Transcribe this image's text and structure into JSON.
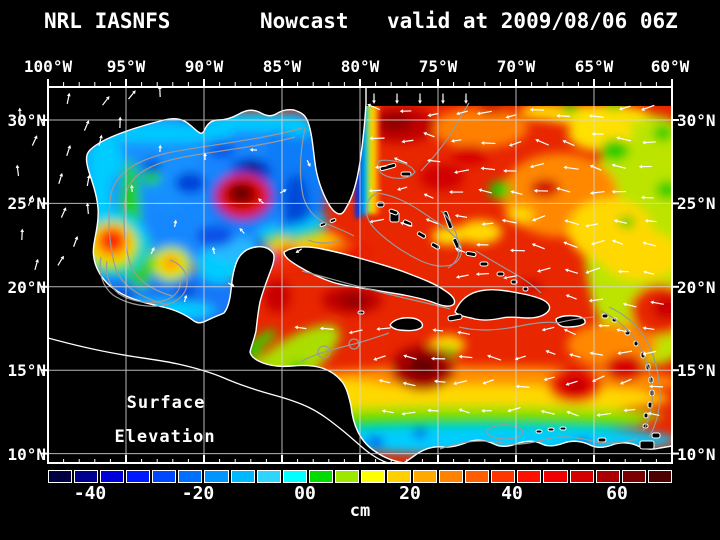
{
  "title": {
    "model": "NRL IASNFS",
    "product": "Nowcast",
    "valid": "valid at 2009/08/06 06Z"
  },
  "map": {
    "annotation": {
      "line1": "Surface",
      "line2": "Elevation"
    },
    "x_axis": {
      "labels": [
        "100°W",
        "95°W",
        "90°W",
        "85°W",
        "80°W",
        "75°W",
        "70°W",
        "65°W",
        "60°W"
      ]
    },
    "y_axis_left": {
      "labels": [
        "30°N",
        "25°N",
        "20°N",
        "15°N",
        "10°N"
      ]
    },
    "y_axis_right": {
      "labels": [
        "30°N",
        "25°N",
        "20°N",
        "15°N",
        "10°N"
      ]
    }
  },
  "colorbar": {
    "units": "cm",
    "tick_labels": [
      "-40",
      "-20",
      "00",
      "20",
      "40",
      "60"
    ],
    "min_cm": -50,
    "max_cm": 70,
    "step_cm": 5,
    "colors": [
      "#000040",
      "#000090",
      "#0000d8",
      "#0018ff",
      "#0048ff",
      "#0070ff",
      "#0095ff",
      "#00b8ff",
      "#2fd4ff",
      "#00ffff",
      "#00dc00",
      "#9ce800",
      "#ffff00",
      "#ffd000",
      "#ffa800",
      "#ff8300",
      "#ff5e00",
      "#ff3600",
      "#ff1000",
      "#f00000",
      "#d40000",
      "#ac0000",
      "#7c0000",
      "#4c0000"
    ]
  }
}
